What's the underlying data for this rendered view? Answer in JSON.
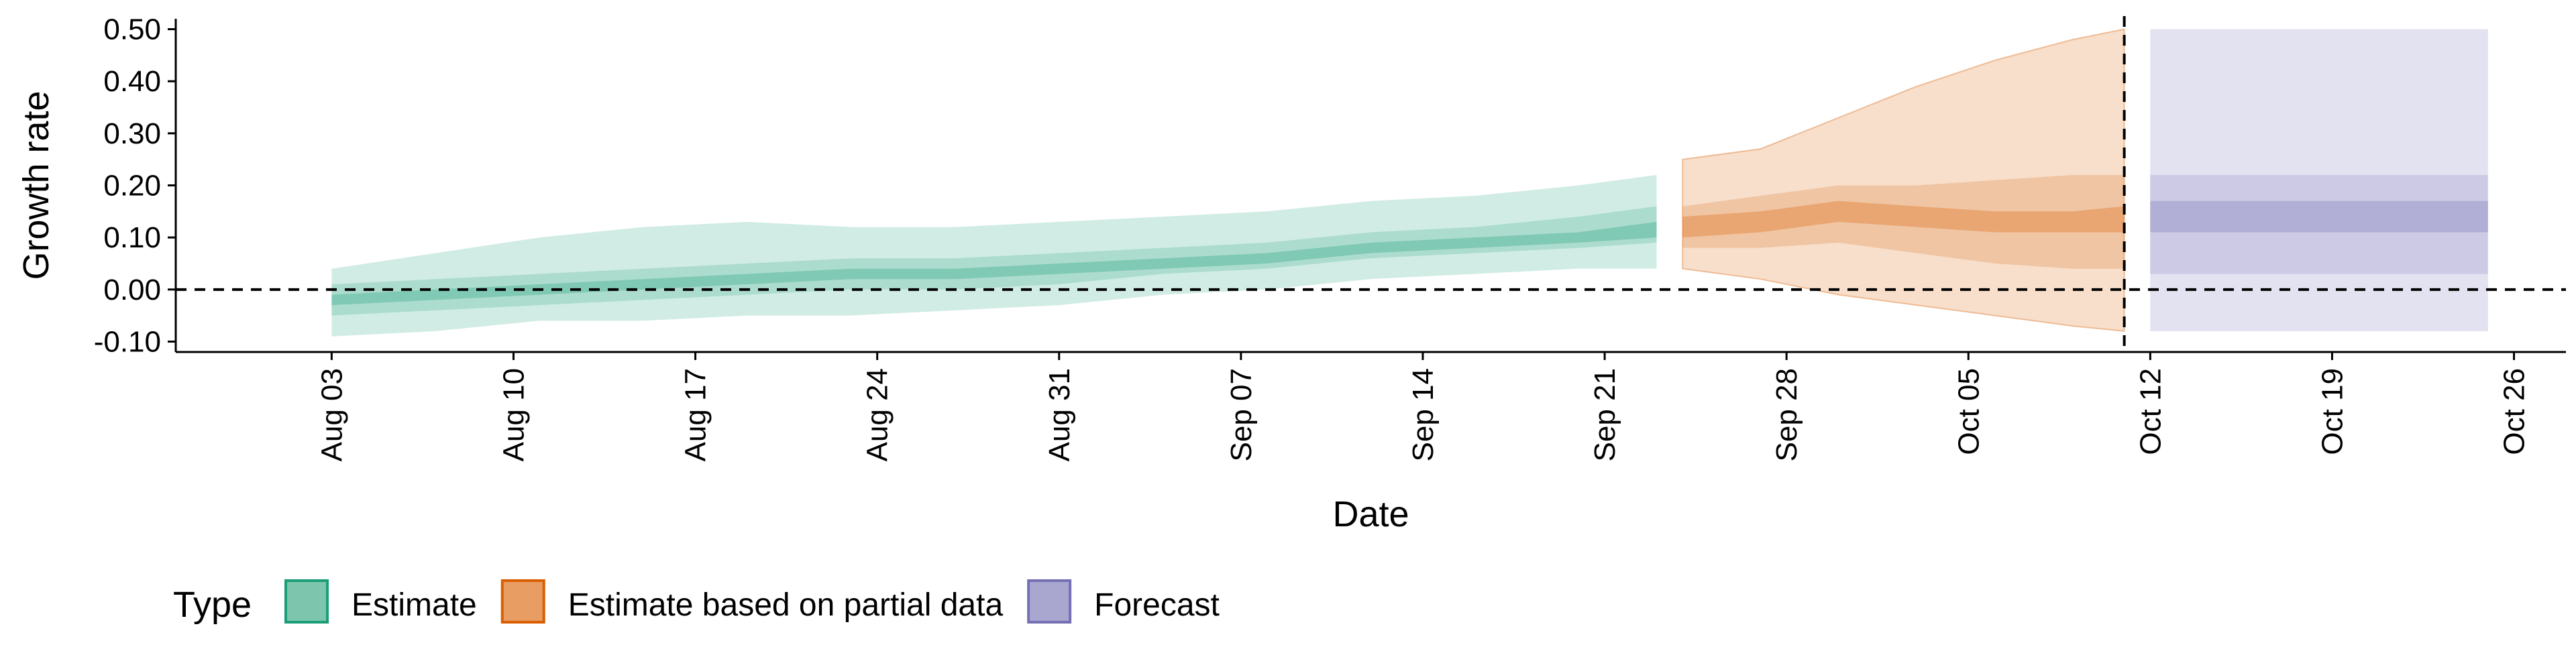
{
  "chart_data": {
    "type": "area",
    "xlabel": "Date",
    "ylabel": "Growth rate",
    "x_range": [
      "2020-07-28",
      "2020-10-28"
    ],
    "ylim": [
      -0.12,
      0.52
    ],
    "x_ticks": [
      "2020-08-03",
      "2020-08-10",
      "2020-08-17",
      "2020-08-24",
      "2020-08-31",
      "2020-09-07",
      "2020-09-14",
      "2020-09-21",
      "2020-09-28",
      "2020-10-05",
      "2020-10-12",
      "2020-10-19",
      "2020-10-26"
    ],
    "x_tick_labels": [
      "Aug 03",
      "Aug 10",
      "Aug 17",
      "Aug 24",
      "Aug 31",
      "Sep 07",
      "Sep 14",
      "Sep 21",
      "Sep 28",
      "Oct 05",
      "Oct 12",
      "Oct 19",
      "Oct 26"
    ],
    "y_ticks": [
      -0.1,
      0.0,
      0.1,
      0.2,
      0.3,
      0.4,
      0.5
    ],
    "y_tick_labels": [
      "-0.10",
      "0.00",
      "0.10",
      "0.20",
      "0.30",
      "0.40",
      "0.50"
    ],
    "reference_lines": {
      "horizontal_y": 0.0,
      "vertical_x": "2020-10-11",
      "style": "dashed"
    },
    "grid": false,
    "legend": {
      "title": "Type",
      "position": "bottom-left",
      "items": [
        {
          "label": "Estimate",
          "fill": "#7dc6ad",
          "border": "#1b9e77"
        },
        {
          "label": "Estimate based on partial data",
          "fill": "#e89d63",
          "border": "#d95f02"
        },
        {
          "label": "Forecast",
          "fill": "#a9a6d0",
          "border": "#7570b3"
        }
      ]
    },
    "series": [
      {
        "name": "Estimate",
        "color": "#1b9e77",
        "x": [
          "2020-08-03",
          "2020-08-07",
          "2020-08-11",
          "2020-08-15",
          "2020-08-19",
          "2020-08-23",
          "2020-08-27",
          "2020-08-31",
          "2020-09-04",
          "2020-09-08",
          "2020-09-12",
          "2020-09-16",
          "2020-09-20",
          "2020-09-23"
        ],
        "median": [
          -0.02,
          -0.01,
          0.0,
          0.01,
          0.02,
          0.03,
          0.03,
          0.04,
          0.05,
          0.06,
          0.08,
          0.09,
          0.1,
          0.12
        ],
        "lower_50": [
          -0.03,
          -0.02,
          -0.01,
          0.0,
          0.01,
          0.02,
          0.02,
          0.03,
          0.04,
          0.05,
          0.07,
          0.08,
          0.09,
          0.1
        ],
        "upper_50": [
          -0.01,
          0.0,
          0.01,
          0.02,
          0.03,
          0.04,
          0.04,
          0.05,
          0.06,
          0.07,
          0.09,
          0.1,
          0.11,
          0.13
        ],
        "lower_90": [
          -0.05,
          -0.04,
          -0.03,
          -0.02,
          -0.01,
          0.0,
          0.0,
          0.01,
          0.03,
          0.04,
          0.06,
          0.07,
          0.08,
          0.09
        ],
        "upper_90": [
          0.01,
          0.02,
          0.03,
          0.04,
          0.05,
          0.06,
          0.06,
          0.07,
          0.08,
          0.09,
          0.11,
          0.12,
          0.14,
          0.16
        ],
        "lower_outer": [
          -0.09,
          -0.08,
          -0.06,
          -0.06,
          -0.05,
          -0.05,
          -0.04,
          -0.03,
          -0.01,
          0.0,
          0.02,
          0.03,
          0.04,
          0.04
        ],
        "upper_outer": [
          0.04,
          0.07,
          0.1,
          0.12,
          0.13,
          0.12,
          0.12,
          0.13,
          0.14,
          0.15,
          0.17,
          0.18,
          0.2,
          0.22
        ]
      },
      {
        "name": "Estimate based on partial data",
        "color": "#d95f02",
        "x": [
          "2020-09-24",
          "2020-09-27",
          "2020-09-30",
          "2020-10-03",
          "2020-10-06",
          "2020-10-09",
          "2020-10-11"
        ],
        "median": [
          0.12,
          0.13,
          0.15,
          0.14,
          0.13,
          0.13,
          0.14
        ],
        "lower_50": [
          0.1,
          0.11,
          0.13,
          0.12,
          0.11,
          0.11,
          0.11
        ],
        "upper_50": [
          0.14,
          0.15,
          0.17,
          0.16,
          0.15,
          0.15,
          0.16
        ],
        "lower_90": [
          0.08,
          0.08,
          0.09,
          0.07,
          0.05,
          0.04,
          0.04
        ],
        "upper_90": [
          0.16,
          0.18,
          0.2,
          0.2,
          0.21,
          0.22,
          0.22
        ],
        "lower_outer": [
          0.04,
          0.02,
          -0.01,
          -0.03,
          -0.05,
          -0.07,
          -0.08
        ],
        "upper_outer": [
          0.25,
          0.27,
          0.33,
          0.39,
          0.44,
          0.48,
          0.5
        ]
      },
      {
        "name": "Forecast",
        "color": "#7570b3",
        "x": [
          "2020-10-12",
          "2020-10-25"
        ],
        "median": [
          0.14,
          0.14
        ],
        "lower_50": [
          0.11,
          0.11
        ],
        "upper_50": [
          0.17,
          0.17
        ],
        "lower_90": [
          0.03,
          0.03
        ],
        "upper_90": [
          0.22,
          0.22
        ],
        "lower_outer": [
          -0.08,
          -0.08
        ],
        "upper_outer": [
          0.5,
          0.5
        ]
      }
    ]
  }
}
